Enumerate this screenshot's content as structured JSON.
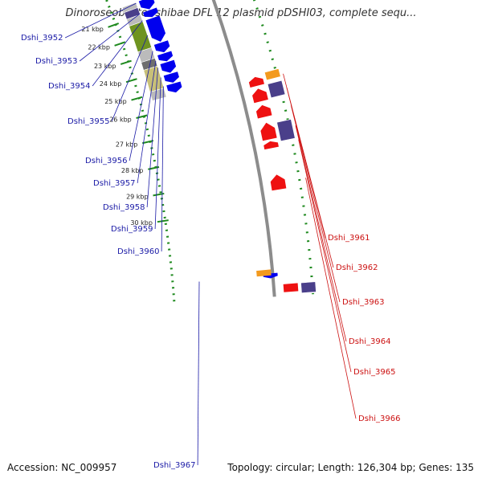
{
  "title": "Dinoroseobacter shibae DFL 12 plasmid pDSHI03, complete sequ...",
  "footer": {
    "accession": "Accession: NC_009957",
    "summary": "Topology: circular; Length: 126,304 bp; Genes: 135"
  },
  "colors": {
    "backbone": "#8c8c8c",
    "gc_track": "#1f8a1f",
    "forward_label": "#1a1aa6",
    "reverse_label": "#cc1111",
    "gene_forward": "#0000ee",
    "gene_reverse": "#ee1111",
    "cog_grey": "#bbbbbb",
    "cog_olive": "#6f9420",
    "cog_khaki": "#c8c078",
    "cog_darkgrey": "#6e6e6e",
    "cog_purple": "#4a3f8a",
    "cog_orange": "#f39a1e"
  },
  "ticks": [
    "21 kbp",
    "22 kbp",
    "23 kbp",
    "24 kbp",
    "25 kbp",
    "26 kbp",
    "27 kbp",
    "28 kbp",
    "29 kbp",
    "30 kbp"
  ],
  "forward_genes": [
    "Dshi_3952",
    "Dshi_3953",
    "Dshi_3954",
    "Dshi_3955",
    "Dshi_3956",
    "Dshi_3957",
    "Dshi_3958",
    "Dshi_3959",
    "Dshi_3960",
    "Dshi_3967"
  ],
  "reverse_genes": [
    "Dshi_3961",
    "Dshi_3962",
    "Dshi_3963",
    "Dshi_3964",
    "Dshi_3965",
    "Dshi_3966"
  ]
}
